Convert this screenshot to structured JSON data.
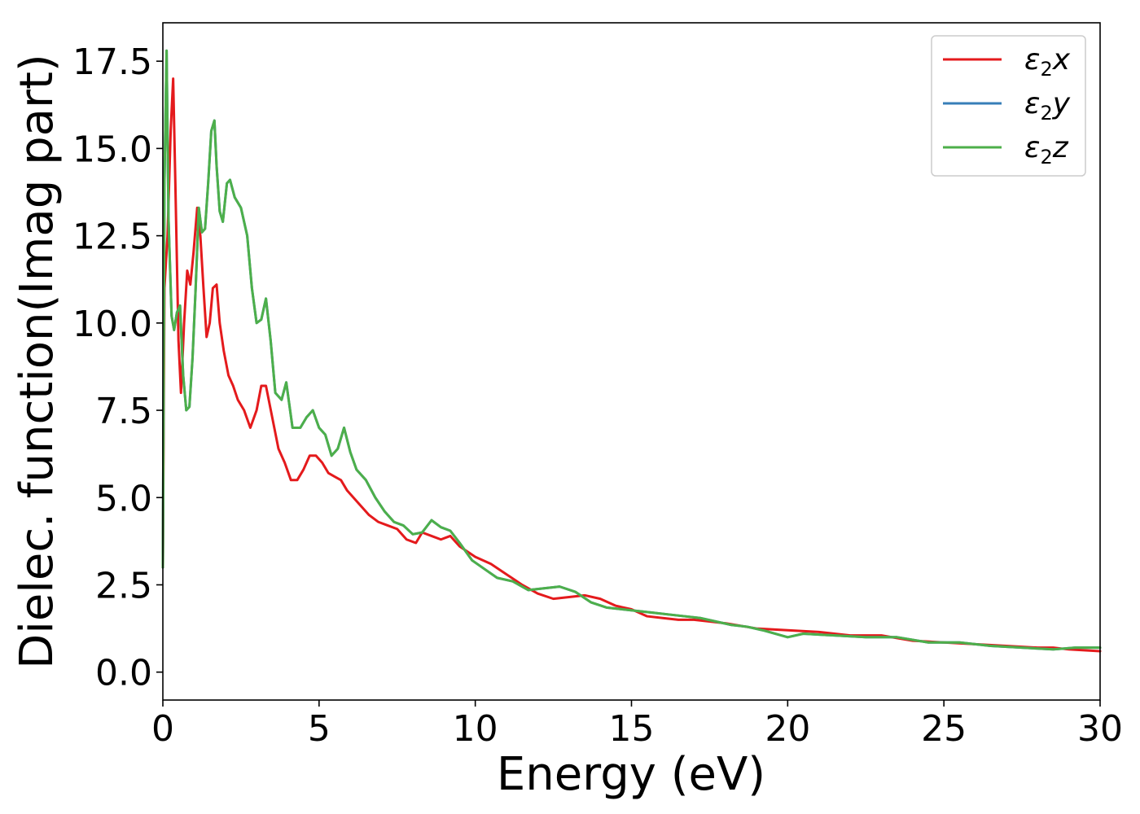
{
  "chart_data": {
    "type": "line",
    "xlabel": "Energy (eV)",
    "ylabel": "Dielec. function(Imag part)",
    "xlim": [
      0,
      30
    ],
    "ylim": [
      -0.8,
      18.6
    ],
    "xticks": [
      0,
      5,
      10,
      15,
      20,
      25,
      30
    ],
    "xtick_labels": [
      "0",
      "5",
      "10",
      "15",
      "20",
      "25",
      "30"
    ],
    "yticks": [
      0.0,
      2.5,
      5.0,
      7.5,
      10.0,
      12.5,
      15.0,
      17.5
    ],
    "ytick_labels": [
      "0.0",
      "2.5",
      "5.0",
      "7.5",
      "10.0",
      "12.5",
      "15.0",
      "17.5"
    ],
    "grid": false,
    "legend_position": "top-right",
    "series": [
      {
        "name": "ε₂x",
        "legend_label": {
          "base": "ε",
          "sub": "2",
          "axis": "x"
        },
        "color": "#e41a1c",
        "x": [
          0.0,
          0.05,
          0.15,
          0.25,
          0.33,
          0.4,
          0.5,
          0.58,
          0.68,
          0.78,
          0.88,
          0.98,
          1.1,
          1.2,
          1.3,
          1.4,
          1.5,
          1.6,
          1.72,
          1.82,
          1.95,
          2.1,
          2.25,
          2.4,
          2.6,
          2.8,
          3.0,
          3.15,
          3.3,
          3.5,
          3.7,
          3.9,
          4.1,
          4.3,
          4.5,
          4.7,
          4.9,
          5.1,
          5.3,
          5.5,
          5.7,
          5.9,
          6.1,
          6.3,
          6.6,
          6.9,
          7.2,
          7.5,
          7.8,
          8.1,
          8.3,
          8.6,
          8.9,
          9.2,
          9.5,
          10.0,
          10.5,
          11.0,
          11.5,
          12.0,
          12.5,
          13.0,
          13.5,
          14.0,
          14.5,
          15.0,
          15.5,
          16.0,
          16.5,
          17.0,
          17.5,
          18.0,
          19.0,
          20.0,
          21.0,
          22.0,
          23.0,
          24.0,
          25.0,
          26.0,
          27.0,
          28.0,
          28.5,
          29.0,
          30.0
        ],
        "y": [
          3.0,
          11.0,
          12.5,
          15.5,
          17.0,
          14.0,
          9.5,
          8.0,
          10.0,
          11.5,
          11.1,
          12.0,
          13.3,
          12.5,
          11.0,
          9.6,
          10.0,
          11.0,
          11.1,
          10.0,
          9.2,
          8.5,
          8.2,
          7.8,
          7.5,
          7.0,
          7.5,
          8.2,
          8.2,
          7.3,
          6.4,
          6.0,
          5.5,
          5.5,
          5.8,
          6.2,
          6.2,
          6.0,
          5.7,
          5.6,
          5.5,
          5.2,
          5.0,
          4.8,
          4.5,
          4.3,
          4.2,
          4.1,
          3.8,
          3.7,
          4.0,
          3.9,
          3.8,
          3.9,
          3.6,
          3.3,
          3.1,
          2.8,
          2.5,
          2.25,
          2.1,
          2.15,
          2.2,
          2.1,
          1.9,
          1.8,
          1.6,
          1.55,
          1.5,
          1.5,
          1.45,
          1.4,
          1.25,
          1.2,
          1.15,
          1.05,
          1.05,
          0.9,
          0.85,
          0.8,
          0.75,
          0.7,
          0.7,
          0.65,
          0.6
        ]
      },
      {
        "name": "ε₂y",
        "legend_label": {
          "base": "ε",
          "sub": "2",
          "axis": "y"
        },
        "color": "#377eb8",
        "x": [
          0.0,
          0.05,
          0.12,
          0.18,
          0.28,
          0.36,
          0.45,
          0.55,
          0.65,
          0.75,
          0.85,
          0.95,
          1.05,
          1.15,
          1.25,
          1.35,
          1.45,
          1.55,
          1.65,
          1.72,
          1.82,
          1.92,
          2.05,
          2.15,
          2.3,
          2.5,
          2.7,
          2.85,
          3.0,
          3.15,
          3.3,
          3.45,
          3.6,
          3.8,
          3.95,
          4.15,
          4.4,
          4.6,
          4.8,
          5.0,
          5.2,
          5.4,
          5.6,
          5.8,
          6.0,
          6.2,
          6.5,
          6.8,
          7.1,
          7.4,
          7.7,
          8.0,
          8.3,
          8.6,
          8.9,
          9.2,
          9.5,
          9.9,
          10.3,
          10.7,
          11.2,
          11.7,
          12.2,
          12.7,
          13.2,
          13.7,
          14.2,
          14.7,
          15.2,
          15.7,
          16.2,
          16.7,
          17.2,
          17.7,
          18.2,
          18.7,
          19.2,
          20.0,
          20.5,
          21.5,
          22.5,
          23.5,
          24.5,
          25.5,
          26.5,
          27.5,
          28.5,
          29.2,
          30.0
        ],
        "y": [
          3.0,
          14.0,
          17.8,
          13.0,
          10.2,
          9.8,
          10.3,
          10.5,
          8.5,
          7.5,
          7.6,
          9.0,
          11.0,
          13.3,
          12.6,
          12.7,
          14.0,
          15.5,
          15.8,
          14.5,
          13.2,
          12.9,
          14.0,
          14.1,
          13.6,
          13.3,
          12.5,
          11.0,
          10.0,
          10.1,
          10.7,
          9.5,
          8.0,
          7.8,
          8.3,
          7.0,
          7.0,
          7.3,
          7.5,
          7.0,
          6.8,
          6.2,
          6.4,
          7.0,
          6.3,
          5.8,
          5.5,
          5.0,
          4.6,
          4.3,
          4.2,
          3.95,
          4.0,
          4.35,
          4.15,
          4.05,
          3.7,
          3.2,
          2.95,
          2.7,
          2.6,
          2.35,
          2.4,
          2.45,
          2.3,
          2.0,
          1.85,
          1.8,
          1.75,
          1.7,
          1.65,
          1.6,
          1.55,
          1.45,
          1.35,
          1.3,
          1.2,
          1.0,
          1.1,
          1.05,
          1.0,
          1.0,
          0.85,
          0.85,
          0.75,
          0.7,
          0.65,
          0.7,
          0.7
        ]
      },
      {
        "name": "ε₂z",
        "legend_label": {
          "base": "ε",
          "sub": "2",
          "axis": "z"
        },
        "color": "#4daf4a",
        "x": [
          0.0,
          0.05,
          0.12,
          0.18,
          0.28,
          0.36,
          0.45,
          0.55,
          0.65,
          0.75,
          0.85,
          0.95,
          1.05,
          1.15,
          1.25,
          1.35,
          1.45,
          1.55,
          1.65,
          1.72,
          1.82,
          1.92,
          2.05,
          2.15,
          2.3,
          2.5,
          2.7,
          2.85,
          3.0,
          3.15,
          3.3,
          3.45,
          3.6,
          3.8,
          3.95,
          4.15,
          4.4,
          4.6,
          4.8,
          5.0,
          5.2,
          5.4,
          5.6,
          5.8,
          6.0,
          6.2,
          6.5,
          6.8,
          7.1,
          7.4,
          7.7,
          8.0,
          8.3,
          8.6,
          8.9,
          9.2,
          9.5,
          9.9,
          10.3,
          10.7,
          11.2,
          11.7,
          12.2,
          12.7,
          13.2,
          13.7,
          14.2,
          14.7,
          15.2,
          15.7,
          16.2,
          16.7,
          17.2,
          17.7,
          18.2,
          18.7,
          19.2,
          20.0,
          20.5,
          21.5,
          22.5,
          23.5,
          24.5,
          25.5,
          26.5,
          27.5,
          28.5,
          29.2,
          30.0
        ],
        "y": [
          3.0,
          14.0,
          17.8,
          13.0,
          10.2,
          9.8,
          10.3,
          10.5,
          8.5,
          7.5,
          7.6,
          9.0,
          11.0,
          13.3,
          12.6,
          12.7,
          14.0,
          15.5,
          15.8,
          14.5,
          13.2,
          12.9,
          14.0,
          14.1,
          13.6,
          13.3,
          12.5,
          11.0,
          10.0,
          10.1,
          10.7,
          9.5,
          8.0,
          7.8,
          8.3,
          7.0,
          7.0,
          7.3,
          7.5,
          7.0,
          6.8,
          6.2,
          6.4,
          7.0,
          6.3,
          5.8,
          5.5,
          5.0,
          4.6,
          4.3,
          4.2,
          3.95,
          4.0,
          4.35,
          4.15,
          4.05,
          3.7,
          3.2,
          2.95,
          2.7,
          2.6,
          2.35,
          2.4,
          2.45,
          2.3,
          2.0,
          1.85,
          1.8,
          1.75,
          1.7,
          1.65,
          1.6,
          1.55,
          1.45,
          1.35,
          1.3,
          1.2,
          1.0,
          1.1,
          1.05,
          1.0,
          1.0,
          0.85,
          0.85,
          0.75,
          0.7,
          0.65,
          0.7,
          0.7
        ]
      }
    ]
  }
}
